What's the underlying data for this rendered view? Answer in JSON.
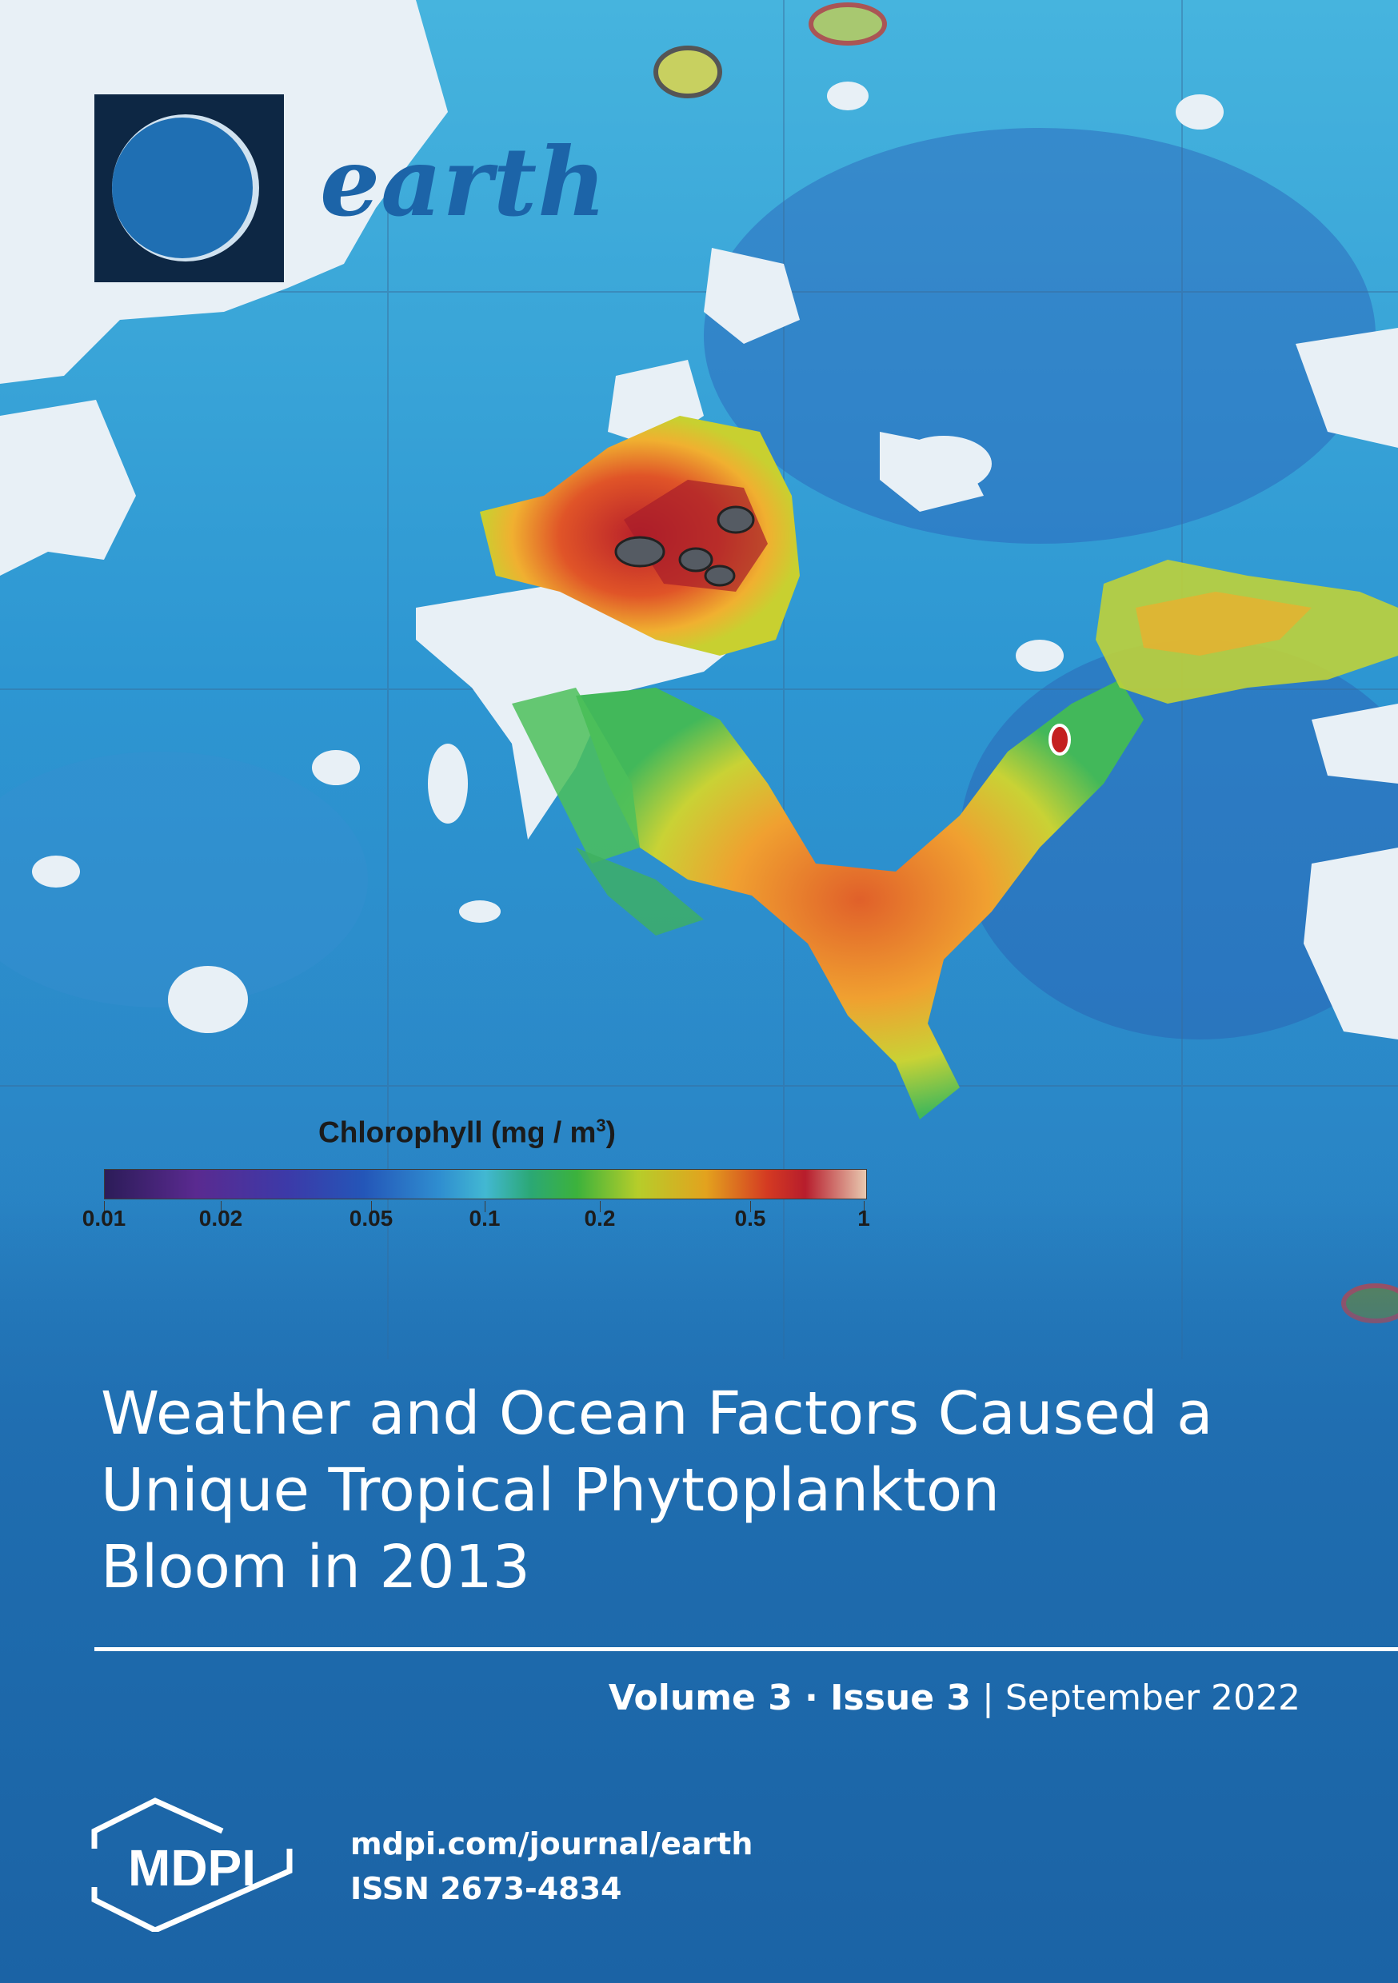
{
  "journal": {
    "name": "earth"
  },
  "legend": {
    "title": "Chlorophyll (mg / m",
    "title_superscript": "3",
    "title_close": ")",
    "ticks": [
      "0.01",
      "0.02",
      "0.05",
      "0.1",
      "0.2",
      "0.5",
      "1"
    ]
  },
  "article": {
    "title_lines": [
      "Weather and Ocean Factors Caused a",
      "Unique Tropical Phytoplankton",
      "Bloom in 2013"
    ]
  },
  "issue": {
    "volume": "Volume 3",
    "separator": " · ",
    "issue": "Issue 3",
    "divider": " | ",
    "date": "September 2022"
  },
  "publisher": {
    "logo_text": "MDPI",
    "url": "mdpi.com/journal/earth",
    "issn": "ISSN 2673-4834"
  },
  "colors": {
    "background": "#2a7fc0",
    "logo_box": "#0d2744",
    "journal_name": "#1c64a8"
  }
}
